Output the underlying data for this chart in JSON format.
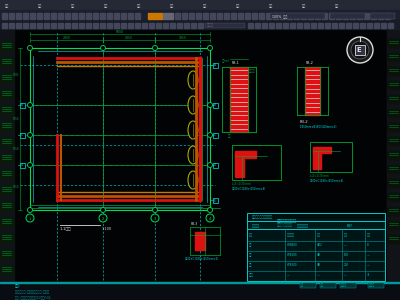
{
  "bg_color": "#0d0d12",
  "toolbar1_color": "#252835",
  "toolbar2_color": "#1c1f2e",
  "sidebar_color": "#151820",
  "drawing_bg": "#020305",
  "cyan": "#00e5e5",
  "green": "#00aa33",
  "green_bright": "#00dd55",
  "green_dim": "#006622",
  "red": "#dd1111",
  "red_bright": "#ff3333",
  "yellow": "#aaaa00",
  "orange": "#bb5500",
  "orange2": "#cc7700",
  "white": "#dddddd",
  "gray": "#666677",
  "teal": "#009999",
  "teal_bright": "#00cccc",
  "dark_teal": "#003333",
  "toolbar_icon": "#44475a",
  "status_bg": "#0a0c14"
}
